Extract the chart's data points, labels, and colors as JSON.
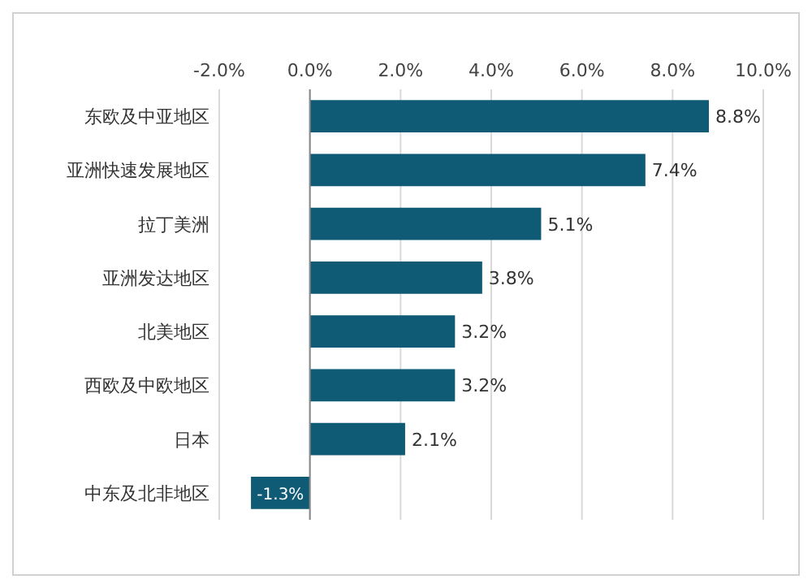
{
  "chart_data": {
    "type": "bar",
    "orientation": "horizontal",
    "categories": [
      "东欧及中亚地区",
      "亚洲快速发展地区",
      "拉丁美洲",
      "亚洲发达地区",
      "北美地区",
      "西欧及中欧地区",
      "日本",
      "中东及北非地区"
    ],
    "values": [
      8.8,
      7.4,
      5.1,
      3.8,
      3.2,
      3.2,
      2.1,
      -1.3
    ],
    "value_labels": [
      "8.8%",
      "7.4%",
      "5.1%",
      "3.8%",
      "3.2%",
      "3.2%",
      "2.1%",
      "-1.3%"
    ],
    "color": "#0f5a75",
    "xlim": [
      -2,
      10
    ],
    "xticks": [
      {
        "value": -2,
        "label": "-2.0%"
      },
      {
        "value": 0,
        "label": "0.0%"
      },
      {
        "value": 2,
        "label": "2.0%"
      },
      {
        "value": 4,
        "label": "4.0%"
      },
      {
        "value": 6,
        "label": "6.0%"
      },
      {
        "value": 8,
        "label": "8.0%"
      },
      {
        "value": 10,
        "label": "10.0%"
      }
    ],
    "grid": "x"
  }
}
